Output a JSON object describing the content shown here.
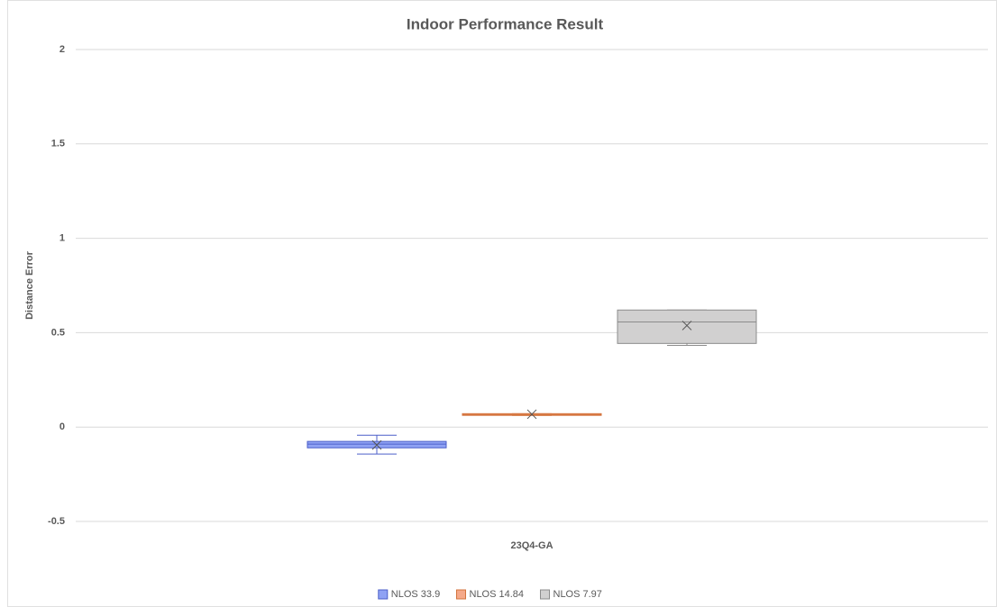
{
  "chart_data": {
    "type": "box",
    "title": "Indoor Performance Result",
    "y_label": "Distance Error",
    "categories": [
      "23Q4-GA"
    ],
    "series": [
      {
        "name": "NLOS 33.9",
        "color": "#8fa2f4",
        "edge": "#4c5fc9",
        "min": -0.143,
        "q1": -0.11,
        "median": -0.09,
        "q3": -0.076,
        "max": -0.043,
        "mean": -0.095
      },
      {
        "name": "NLOS 14.84",
        "color": "#f5a989",
        "edge": "#d3733c",
        "min": 0.062,
        "q1": 0.062,
        "median": 0.066,
        "q3": 0.071,
        "max": 0.071,
        "mean": 0.068
      },
      {
        "name": "NLOS 7.97",
        "color": "#d1d0d0",
        "edge": "#8c8c8c",
        "min": 0.433,
        "q1": 0.443,
        "median": 0.557,
        "q3": 0.62,
        "max": 0.62,
        "mean": 0.538
      }
    ],
    "ylim": [
      -0.5,
      2
    ],
    "yticks": [
      -0.5,
      0,
      0.5,
      1,
      1.5,
      2
    ],
    "grid": true,
    "legend": "bottom"
  }
}
